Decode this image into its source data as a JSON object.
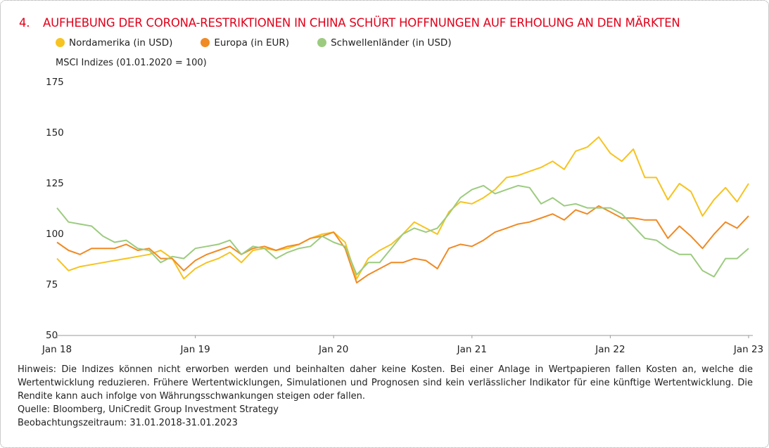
{
  "chart_data": {
    "type": "line",
    "number": "4.",
    "title": "AUFHEBUNG DER CORONA-RESTRIKTIONEN IN CHINA SCHÜRT HOFFNUNGEN AUF ERHOLUNG AN DEN MÄRKTEN",
    "ylabel": "MSCI Indizes (01.01.2020 = 100)",
    "x": [
      "2018-01",
      "2018-02",
      "2018-03",
      "2018-04",
      "2018-05",
      "2018-06",
      "2018-07",
      "2018-08",
      "2018-09",
      "2018-10",
      "2018-11",
      "2018-12",
      "2019-01",
      "2019-02",
      "2019-03",
      "2019-04",
      "2019-05",
      "2019-06",
      "2019-07",
      "2019-08",
      "2019-09",
      "2019-10",
      "2019-11",
      "2019-12",
      "2020-01",
      "2020-02",
      "2020-03",
      "2020-04",
      "2020-05",
      "2020-06",
      "2020-07",
      "2020-08",
      "2020-09",
      "2020-10",
      "2020-11",
      "2020-12",
      "2021-01",
      "2021-02",
      "2021-03",
      "2021-04",
      "2021-05",
      "2021-06",
      "2021-07",
      "2021-08",
      "2021-09",
      "2021-10",
      "2021-11",
      "2021-12",
      "2022-01",
      "2022-02",
      "2022-03",
      "2022-04",
      "2022-05",
      "2022-06",
      "2022-07",
      "2022-08",
      "2022-09",
      "2022-10",
      "2022-11",
      "2022-12",
      "2023-01"
    ],
    "series": [
      {
        "name": "Nordamerika (in USD)",
        "color": "#f6c320",
        "values": [
          88,
          82,
          84,
          85,
          86,
          87,
          88,
          89,
          90,
          92,
          88,
          78,
          83,
          86,
          88,
          91,
          86,
          92,
          93,
          92,
          93,
          95,
          98,
          100,
          101,
          96,
          78,
          88,
          92,
          95,
          100,
          106,
          103,
          100,
          111,
          116,
          115,
          118,
          122,
          128,
          129,
          131,
          133,
          136,
          132,
          141,
          143,
          148,
          140,
          136,
          142,
          128,
          128,
          117,
          125,
          121,
          109,
          117,
          123,
          116,
          125
        ]
      },
      {
        "name": "Europa (in EUR)",
        "color": "#f08a24",
        "values": [
          96,
          92,
          90,
          93,
          93,
          93,
          95,
          92,
          93,
          88,
          88,
          82,
          87,
          90,
          92,
          94,
          90,
          93,
          94,
          92,
          94,
          95,
          98,
          99,
          101,
          93,
          76,
          80,
          83,
          86,
          86,
          88,
          87,
          83,
          93,
          95,
          94,
          97,
          101,
          103,
          105,
          106,
          108,
          110,
          107,
          112,
          110,
          114,
          111,
          108,
          108,
          107,
          107,
          98,
          104,
          99,
          93,
          100,
          106,
          103,
          109
        ]
      },
      {
        "name": "Schwellenländer (in USD)",
        "color": "#9ccb7f",
        "values": [
          113,
          106,
          105,
          104,
          99,
          96,
          97,
          93,
          92,
          86,
          89,
          88,
          93,
          94,
          95,
          97,
          90,
          94,
          93,
          88,
          91,
          93,
          94,
          99,
          96,
          94,
          80,
          86,
          86,
          93,
          100,
          103,
          101,
          103,
          110,
          118,
          122,
          124,
          120,
          122,
          124,
          123,
          115,
          118,
          114,
          115,
          113,
          113,
          113,
          110,
          104,
          98,
          97,
          93,
          90,
          90,
          82,
          79,
          88,
          88,
          93
        ]
      }
    ],
    "xlim": [
      "2018-01",
      "2023-01"
    ],
    "xticks": [
      {
        "value": "2018-01",
        "label": "Jan 18"
      },
      {
        "value": "2019-01",
        "label": "Jan 19"
      },
      {
        "value": "2020-01",
        "label": "Jan 20"
      },
      {
        "value": "2021-01",
        "label": "Jan 21"
      },
      {
        "value": "2022-01",
        "label": "Jan 22"
      },
      {
        "value": "2023-01",
        "label": "Jan 23"
      }
    ],
    "ylim": [
      50,
      175
    ],
    "yticks": [
      50,
      75,
      100,
      125,
      150,
      175
    ],
    "grid": false,
    "notes": [
      "Hinweis: Die Indizes können nicht erworben werden und beinhalten daher keine Kosten. Bei einer Anlage in Wertpapieren fallen Kosten an, welche die Wertentwicklung reduzieren. Frühere Wertentwicklungen, Simulationen und Prognosen sind kein verlässlicher Indikator für eine künftige Wertentwicklung. Die Rendite kann auch infolge von Währungsschwankungen steigen oder fallen.",
      "Quelle: Bloomberg, UniCredit Group Investment Strategy",
      "Beobachtungszeitraum: 31.01.2018-31.01.2023"
    ]
  }
}
